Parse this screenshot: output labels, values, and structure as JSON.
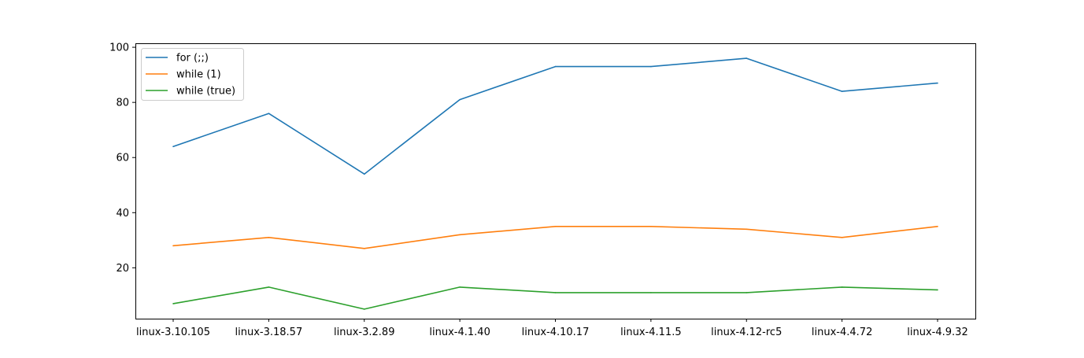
{
  "chart_data": {
    "type": "line",
    "title": "",
    "xlabel": "",
    "ylabel": "",
    "categories": [
      "linux-3.10.105",
      "linux-3.18.57",
      "linux-3.2.89",
      "linux-4.1.40",
      "linux-4.10.17",
      "linux-4.11.5",
      "linux-4.12-rc5",
      "linux-4.4.72",
      "linux-4.9.32"
    ],
    "ylim": [
      1.55,
      101.45
    ],
    "yticks": [
      20,
      40,
      60,
      80,
      100
    ],
    "grid": false,
    "legend_position": "top-left",
    "series": [
      {
        "name": "for (;;)",
        "color": "#1f77b4",
        "values": [
          64,
          76,
          54,
          81,
          93,
          93,
          96,
          84,
          87
        ]
      },
      {
        "name": "while (1)",
        "color": "#ff7f0e",
        "values": [
          28,
          31,
          27,
          32,
          35,
          35,
          34,
          31,
          35
        ]
      },
      {
        "name": "while (true)",
        "color": "#2ca02c",
        "values": [
          7,
          13,
          5,
          13,
          11,
          11,
          11,
          13,
          12
        ]
      }
    ]
  }
}
